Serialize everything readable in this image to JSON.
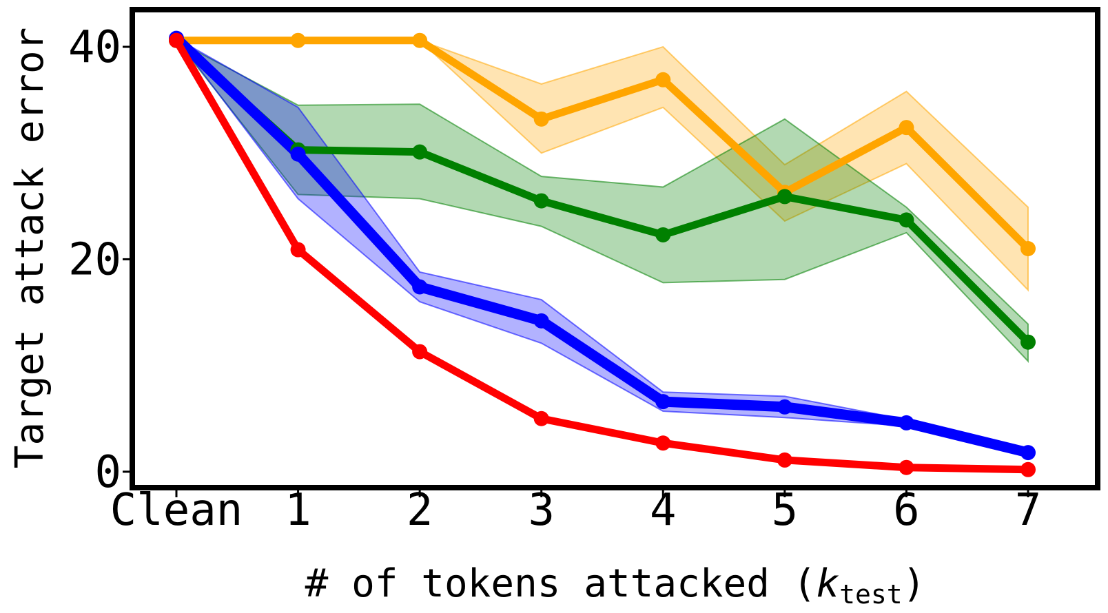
{
  "chart_data": {
    "type": "line",
    "title": "",
    "xlabel": "# of tokens attacked (",
    "xlabel_var": "k",
    "xlabel_sub": "test",
    "xlabel_close": ")",
    "ylabel": "Target attack error",
    "categories": [
      "Clean",
      "1",
      "2",
      "3",
      "4",
      "5",
      "6",
      "7"
    ],
    "yticks": [
      "0",
      "20",
      "40"
    ],
    "ylim": [
      -1.5,
      43.5
    ],
    "grid": false,
    "legend": "none",
    "series": [
      {
        "name": "orange",
        "color": "#ffa500",
        "values": [
          40.6,
          40.6,
          40.6,
          33.2,
          36.9,
          26.3,
          32.4,
          21.0
        ],
        "lower": [
          40.6,
          40.6,
          40.6,
          30.0,
          34.3,
          23.6,
          29.0,
          17.1
        ],
        "upper": [
          40.6,
          40.6,
          40.6,
          36.5,
          40.0,
          28.9,
          35.8,
          24.9
        ]
      },
      {
        "name": "green",
        "color": "#008000",
        "values": [
          40.6,
          30.3,
          30.1,
          25.5,
          22.3,
          25.9,
          23.7,
          12.2
        ],
        "lower": [
          40.6,
          26.1,
          25.7,
          23.1,
          17.8,
          18.1,
          22.5,
          10.4
        ],
        "upper": [
          40.6,
          34.5,
          34.6,
          27.8,
          26.8,
          33.2,
          24.9,
          13.9
        ]
      },
      {
        "name": "blue",
        "color": "#0000ff",
        "values": [
          40.8,
          29.9,
          17.4,
          14.2,
          6.6,
          6.1,
          4.6,
          1.8
        ],
        "lower": [
          40.8,
          25.7,
          16.0,
          12.1,
          5.7,
          5.1,
          4.3,
          1.6
        ],
        "upper": [
          40.8,
          34.3,
          18.8,
          16.2,
          7.5,
          7.1,
          4.9,
          2.0
        ]
      },
      {
        "name": "red",
        "color": "#ff0000",
        "values": [
          40.6,
          20.9,
          11.3,
          5.0,
          2.7,
          1.1,
          0.4,
          0.2
        ],
        "lower": [
          40.6,
          20.9,
          11.0,
          5.0,
          2.7,
          1.1,
          0.4,
          0.2
        ],
        "upper": [
          40.6,
          20.9,
          11.6,
          5.0,
          2.7,
          1.1,
          0.4,
          0.2
        ]
      }
    ]
  }
}
